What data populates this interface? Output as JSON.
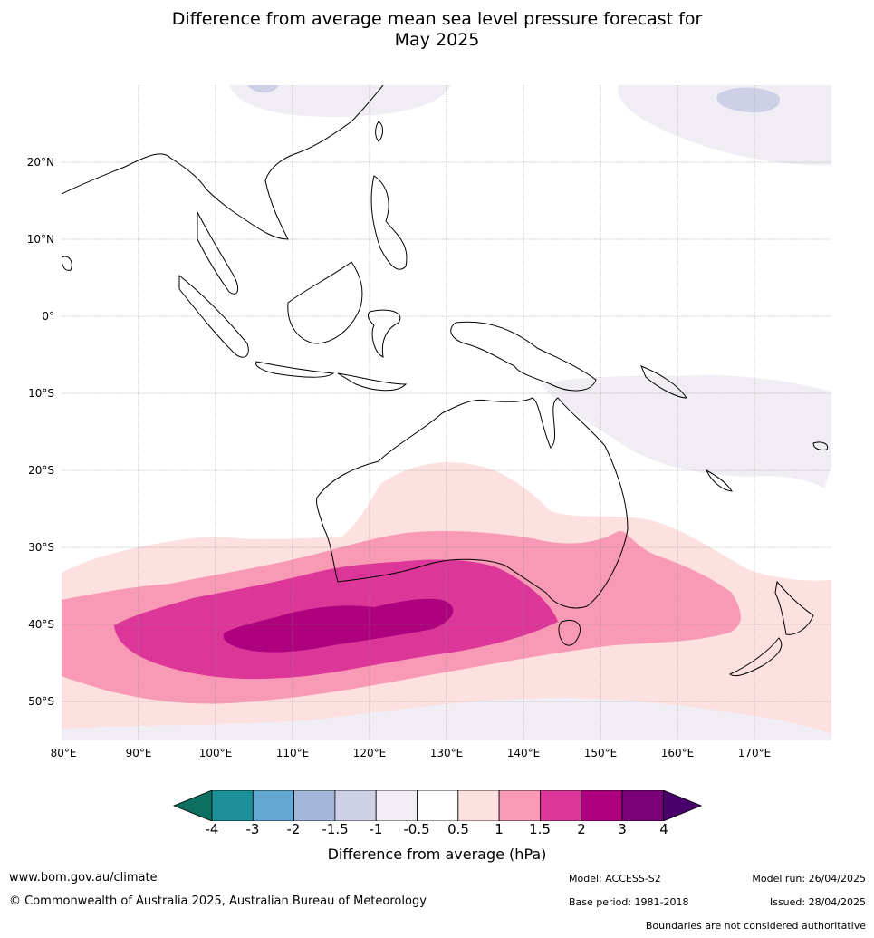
{
  "title": {
    "line1": "Difference from average mean sea level pressure forecast for",
    "line2": "May 2025"
  },
  "map": {
    "region": "Indian Ocean, Maritime Continent, Australia and western Pacific",
    "projection_extent": {
      "lon_min": 80,
      "lon_max": 180,
      "lat_min": -55,
      "lat_max": 30
    },
    "lat_labels": [
      "20°N",
      "10°N",
      "0°",
      "10°S",
      "20°S",
      "30°S",
      "40°S",
      "50°S"
    ],
    "lon_labels": [
      "80°E",
      "90°E",
      "100°E",
      "110°E",
      "120°E",
      "130°E",
      "140°E",
      "150°E",
      "160°E",
      "170°E"
    ],
    "gridlines": true,
    "features": [
      "Strong positive anomaly (2 to 3 hPa) over the Southern Ocean south-west of Australia near 40°S",
      "Positive anomalies (0.5 to 2 hPa) across southern Australia, Tasman Sea and south of Australia",
      "Weak negative anomalies (-0.5 to -1.5 hPa) near 50-55°S south of Australia",
      "Weak negative anomalies over the western Pacific east of Papua New Guinea and north of 20°N"
    ]
  },
  "colorbar": {
    "title": "Difference from average (hPa)",
    "ticks": [
      "-4",
      "-3",
      "-2",
      "-1.5",
      "-1",
      "-0.5",
      "0.5",
      "1",
      "1.5",
      "2",
      "3",
      "4"
    ],
    "colors": [
      "#0d6f5f",
      "#1c9199",
      "#62a8d1",
      "#a2b7d8",
      "#cdd0e6",
      "#f1edf5",
      "#ffffff",
      "#fde0e0",
      "#f89ab5",
      "#dc3699",
      "#ae017e",
      "#7a0177",
      "#49006a"
    ]
  },
  "footer": {
    "url": "www.bom.gov.au/climate",
    "copyright": "© Commonwealth of Australia 2025, Australian Bureau of Meteorology",
    "model": "Model: ACCESS-S2",
    "base_period": "Base period: 1981-2018",
    "model_run": "Model run: 26/04/2025",
    "issued": "Issued: 28/04/2025",
    "boundaries": "Boundaries are not considered authoritative"
  }
}
